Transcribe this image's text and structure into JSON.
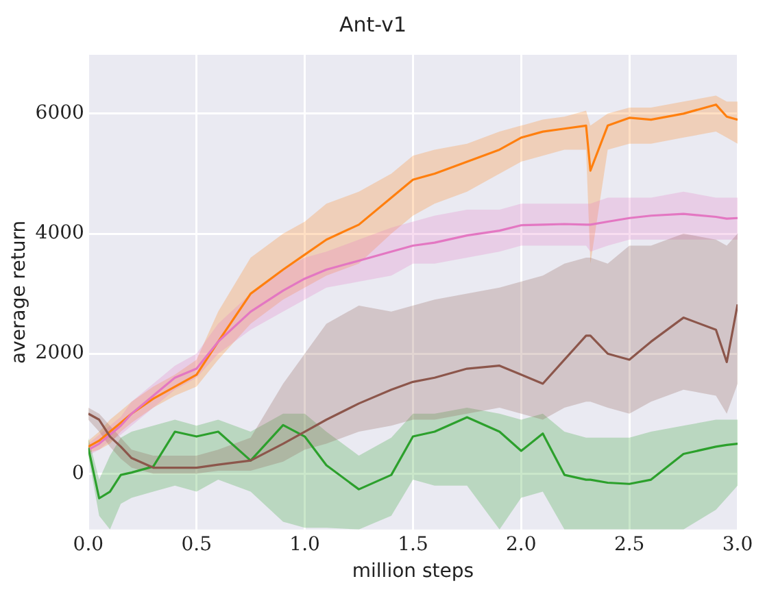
{
  "chart_data": {
    "type": "line",
    "title": "Ant-v1",
    "xlabel": "million steps",
    "ylabel": "average return",
    "x": [
      0,
      0.05,
      0.1,
      0.15,
      0.2,
      0.3,
      0.4,
      0.5,
      0.6,
      0.75,
      0.9,
      1.0,
      1.1,
      1.25,
      1.4,
      1.5,
      1.6,
      1.75,
      1.9,
      2.0,
      2.1,
      2.2,
      2.3,
      2.32,
      2.4,
      2.5,
      2.6,
      2.75,
      2.9,
      2.95,
      3.0
    ],
    "series": [
      {
        "color": "#8c564b",
        "values": [
          1000,
          900,
          620,
          450,
          260,
          100,
          100,
          100,
          150,
          220,
          500,
          700,
          900,
          1170,
          1400,
          1530,
          1600,
          1750,
          1800,
          1650,
          1500,
          1900,
          2300,
          2300,
          2000,
          1900,
          2200,
          2600,
          2400,
          1860,
          2820
        ],
        "lower": [
          900,
          700,
          450,
          250,
          100,
          0,
          0,
          0,
          50,
          50,
          200,
          400,
          500,
          700,
          800,
          900,
          900,
          1000,
          1100,
          1000,
          900,
          1100,
          1200,
          1200,
          1100,
          1000,
          1200,
          1400,
          1300,
          1000,
          1500
        ],
        "upper": [
          1100,
          1000,
          800,
          600,
          400,
          300,
          300,
          300,
          400,
          600,
          1500,
          2000,
          2500,
          2800,
          2700,
          2800,
          2900,
          3000,
          3100,
          3200,
          3300,
          3500,
          3600,
          3600,
          3500,
          3800,
          3800,
          4000,
          3900,
          3800,
          4000
        ]
      },
      {
        "color": "#2ca02c",
        "values": [
          430,
          -410,
          -300,
          -20,
          20,
          120,
          700,
          620,
          700,
          220,
          810,
          620,
          140,
          -260,
          -20,
          620,
          700,
          940,
          700,
          380,
          670,
          -20,
          -100,
          -100,
          -150,
          -170,
          -100,
          330,
          450,
          480,
          500
        ],
        "lower": [
          300,
          -700,
          -930,
          -500,
          -400,
          -300,
          -200,
          -300,
          -100,
          -300,
          -800,
          -900,
          -900,
          -930,
          -700,
          -100,
          -200,
          -200,
          -930,
          -400,
          -300,
          -930,
          -930,
          -930,
          -930,
          -930,
          -930,
          -930,
          -600,
          -400,
          -200
        ],
        "upper": [
          600,
          -100,
          300,
          600,
          700,
          800,
          900,
          800,
          900,
          700,
          1000,
          1000,
          700,
          300,
          600,
          1000,
          1000,
          1100,
          1000,
          900,
          1000,
          700,
          600,
          600,
          600,
          600,
          700,
          800,
          900,
          900,
          900
        ]
      },
      {
        "color": "#e377c2",
        "values": [
          400,
          500,
          650,
          800,
          1000,
          1300,
          1600,
          1750,
          2200,
          2700,
          3050,
          3250,
          3400,
          3550,
          3700,
          3800,
          3850,
          3970,
          4050,
          4140,
          4150,
          4160,
          4150,
          4150,
          4200,
          4260,
          4300,
          4330,
          4280,
          4250,
          4260
        ],
        "lower": [
          300,
          400,
          550,
          650,
          800,
          1100,
          1400,
          1600,
          2000,
          2400,
          2700,
          2900,
          3100,
          3200,
          3300,
          3500,
          3500,
          3600,
          3700,
          3800,
          3800,
          3800,
          3800,
          3700,
          3800,
          3900,
          3900,
          3900,
          3900,
          3900,
          3900
        ],
        "upper": [
          500,
          650,
          800,
          950,
          1200,
          1500,
          1800,
          2000,
          2500,
          3000,
          3400,
          3600,
          3700,
          3900,
          4100,
          4200,
          4300,
          4400,
          4400,
          4500,
          4500,
          4500,
          4500,
          4500,
          4600,
          4600,
          4600,
          4700,
          4600,
          4600,
          4600
        ]
      },
      {
        "color": "#ff7f0e",
        "values": [
          450,
          550,
          700,
          850,
          1000,
          1250,
          1450,
          1650,
          2200,
          3000,
          3400,
          3650,
          3900,
          4150,
          4600,
          4900,
          5000,
          5200,
          5400,
          5600,
          5700,
          5750,
          5800,
          5050,
          5800,
          5930,
          5900,
          6000,
          6150,
          5950,
          5900
        ],
        "lower": [
          350,
          400,
          500,
          700,
          850,
          1100,
          1300,
          1450,
          1900,
          2500,
          2900,
          3100,
          3300,
          3500,
          4000,
          4300,
          4500,
          4700,
          5000,
          5200,
          5300,
          5400,
          5400,
          3500,
          5400,
          5500,
          5500,
          5600,
          5700,
          5600,
          5500
        ],
        "upper": [
          550,
          700,
          900,
          1050,
          1200,
          1450,
          1650,
          1900,
          2700,
          3600,
          4000,
          4200,
          4500,
          4700,
          5000,
          5300,
          5400,
          5500,
          5700,
          5800,
          5900,
          5950,
          6050,
          5800,
          6000,
          6100,
          6100,
          6200,
          6300,
          6200,
          6200
        ]
      }
    ],
    "xlim": [
      0,
      3
    ],
    "xticks": [
      {
        "value": 0,
        "label": "0.0"
      },
      {
        "value": 0.5,
        "label": "0.5"
      },
      {
        "value": 1,
        "label": "1.0"
      },
      {
        "value": 1.5,
        "label": "1.5"
      },
      {
        "value": 2,
        "label": "2.0"
      },
      {
        "value": 2.5,
        "label": "2.5"
      },
      {
        "value": 3,
        "label": "3.0"
      }
    ],
    "ylim": [
      -930,
      6980
    ],
    "yticks": [
      0,
      2000,
      4000,
      6000
    ],
    "grid": true,
    "legend": false,
    "line_style": "solid",
    "marker": "none"
  }
}
